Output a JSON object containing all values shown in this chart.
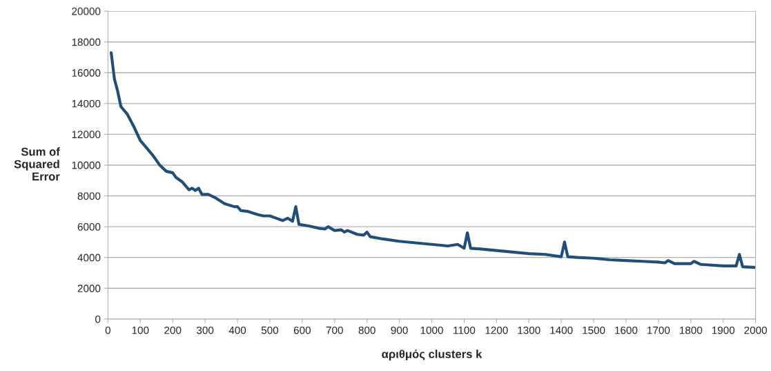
{
  "chart_data": {
    "type": "line",
    "xlabel": "αριθμός clusters k",
    "ylabel": "Sum of\nSquared\nError",
    "x": [
      10,
      20,
      30,
      40,
      60,
      80,
      100,
      120,
      140,
      160,
      180,
      200,
      210,
      230,
      250,
      260,
      270,
      280,
      290,
      310,
      330,
      360,
      390,
      400,
      410,
      430,
      460,
      480,
      500,
      520,
      540,
      555,
      570,
      580,
      590,
      620,
      650,
      670,
      680,
      700,
      720,
      730,
      740,
      770,
      790,
      800,
      810,
      850,
      900,
      950,
      1000,
      1050,
      1080,
      1100,
      1110,
      1120,
      1150,
      1200,
      1250,
      1300,
      1350,
      1400,
      1410,
      1420,
      1450,
      1500,
      1550,
      1600,
      1650,
      1700,
      1720,
      1730,
      1750,
      1800,
      1810,
      1830,
      1900,
      1940,
      1950,
      1960,
      2000
    ],
    "series": [
      {
        "color": "#1f4e79",
        "values": [
          17300,
          15600,
          14800,
          13800,
          13300,
          12500,
          11600,
          11100,
          10600,
          10000,
          9600,
          9500,
          9200,
          8900,
          8400,
          8500,
          8350,
          8500,
          8100,
          8100,
          7900,
          7500,
          7300,
          7300,
          7050,
          7000,
          6800,
          6700,
          6700,
          6550,
          6400,
          6550,
          6350,
          7300,
          6150,
          6050,
          5900,
          5850,
          6000,
          5750,
          5800,
          5650,
          5750,
          5500,
          5450,
          5650,
          5350,
          5200,
          5050,
          4950,
          4850,
          4750,
          4850,
          4600,
          5600,
          4600,
          4550,
          4450,
          4350,
          4250,
          4200,
          4050,
          5000,
          4050,
          4000,
          3950,
          3850,
          3800,
          3750,
          3700,
          3650,
          3800,
          3600,
          3600,
          3750,
          3550,
          3450,
          3450,
          4200,
          3400,
          3350
        ]
      }
    ],
    "xlim": [
      0,
      2000
    ],
    "xticks": [
      0,
      100,
      200,
      300,
      400,
      500,
      600,
      700,
      800,
      900,
      1000,
      1100,
      1200,
      1300,
      1400,
      1500,
      1600,
      1700,
      1800,
      1900,
      2000
    ],
    "ylim": [
      0,
      20000
    ],
    "yticks": [
      0,
      2000,
      4000,
      6000,
      8000,
      10000,
      12000,
      14000,
      16000,
      18000,
      20000
    ],
    "grid": "y",
    "marker": "none",
    "line_style": "solid"
  }
}
